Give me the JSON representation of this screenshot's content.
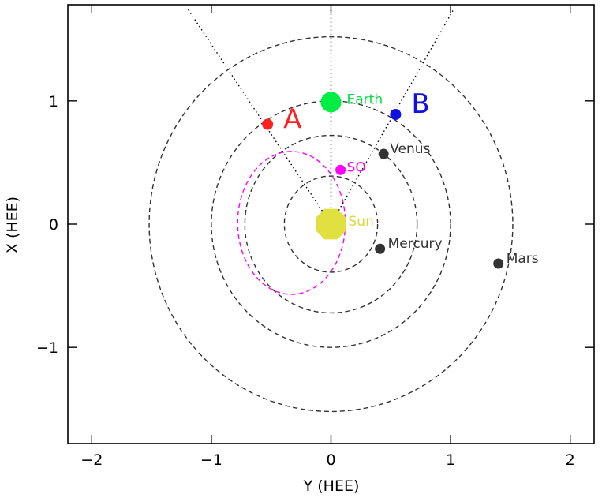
{
  "chart_data": {
    "type": "scatter",
    "title": "",
    "xlabel": "Y (HEE)",
    "ylabel": "X (HEE)",
    "xlim": [
      -2.2,
      2.2
    ],
    "ylim": [
      1.78,
      -1.78
    ],
    "x_ticks": [
      -2,
      -1,
      0,
      1,
      2
    ],
    "x_tick_labels": [
      "−2",
      "−1",
      "0",
      "1",
      "2"
    ],
    "y_ticks": [
      -1,
      0,
      1
    ],
    "y_tick_labels": [
      "−1",
      "0",
      "1"
    ],
    "grid": false,
    "orbits": [
      {
        "name": "Mercury orbit",
        "r": 0.39,
        "color": "#333333"
      },
      {
        "name": "Venus orbit",
        "r": 0.72,
        "color": "#333333"
      },
      {
        "name": "Earth orbit",
        "r": 1.0,
        "color": "#333333"
      },
      {
        "name": "Mars orbit",
        "r": 1.52,
        "color": "#333333"
      }
    ],
    "so_orbit": {
      "cx": -0.33,
      "cy": 0.01,
      "rx": 0.45,
      "ry": 0.58,
      "color": "#ff00ff"
    },
    "sight_lines": [
      {
        "from": [
          0,
          0
        ],
        "to": [
          -1.2,
          1.75
        ]
      },
      {
        "from": [
          0,
          0
        ],
        "to": [
          0,
          1.75
        ]
      },
      {
        "from": [
          0,
          0
        ],
        "to": [
          1.03,
          1.75
        ]
      }
    ],
    "bodies": [
      {
        "name": "Sun",
        "label": "Sun",
        "x": 0.0,
        "y": 0.0,
        "size": 21,
        "color": "#e0e040",
        "label_color": "#d8d840",
        "label_size": 17
      },
      {
        "name": "Mercury",
        "label": "Mercury",
        "x": 0.41,
        "y": -0.2,
        "size": 6.5,
        "color": "#333333",
        "label_color": "#333333",
        "label_size": 17
      },
      {
        "name": "Mars",
        "label": "Mars",
        "x": 1.4,
        "y": -0.32,
        "size": 6.5,
        "color": "#333333",
        "label_color": "#333333",
        "label_size": 17
      },
      {
        "name": "SO",
        "label": "SO",
        "x": 0.08,
        "y": 0.44,
        "size": 6.5,
        "color": "#ff00ff",
        "label_color": "#ff00ff",
        "label_size": 17
      },
      {
        "name": "Venus",
        "label": "Venus",
        "x": 0.44,
        "y": 0.57,
        "size": 6.5,
        "color": "#333333",
        "label_color": "#333333",
        "label_size": 17
      },
      {
        "name": "STEREO A",
        "label": "A",
        "x": -0.53,
        "y": 0.81,
        "size": 7,
        "color": "#ff2020",
        "label_color": "#ff2020",
        "label_size": 34
      },
      {
        "name": "STEREO B",
        "label": "B",
        "x": 0.54,
        "y": 0.89,
        "size": 7,
        "color": "#1010e0",
        "label_color": "#1010e0",
        "label_size": 34
      },
      {
        "name": "Earth",
        "label": "Earth",
        "x": 0.0,
        "y": 0.99,
        "size": 13,
        "color": "#00ee44",
        "label_color": "#00dd44",
        "label_size": 17
      }
    ]
  }
}
